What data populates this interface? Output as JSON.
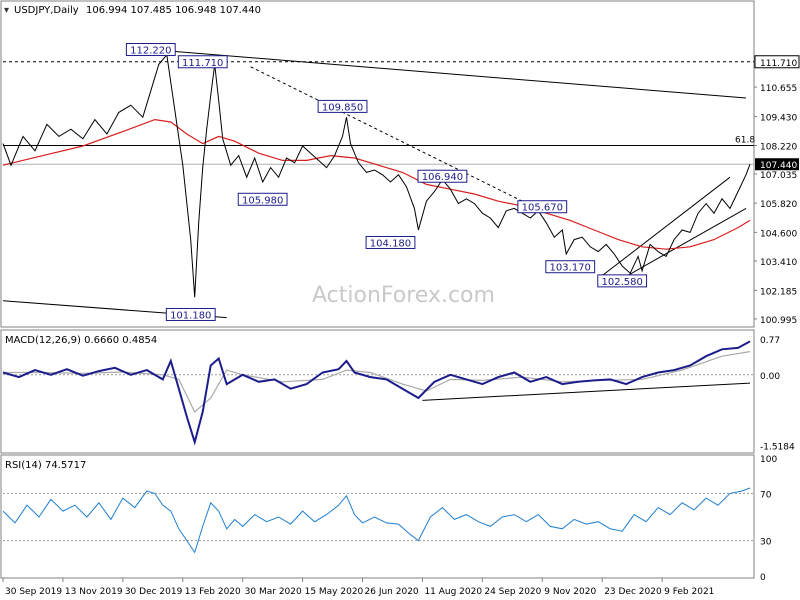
{
  "chart_data": {
    "type": "line",
    "instrument": {
      "symbol": "USDJPY,Daily",
      "ohlc": "106.994 107.485 106.948 107.440",
      "last_price": 107.44
    },
    "watermark": "ActionForex.com",
    "price_panel": {
      "ylim": [
        100.7,
        114.2
      ],
      "tick_labels": [
        "111.710",
        "110.655",
        "109.430",
        "108.220",
        "107.440",
        "107.035",
        "105.820",
        "104.600",
        "103.410",
        "102.185",
        "100.995"
      ],
      "h_levels": [
        {
          "value": 111.71,
          "label": "111.710",
          "style": "dashed"
        },
        {
          "value": 108.22,
          "label": "108.220",
          "style": "solid"
        },
        {
          "value": 107.44,
          "label": "107.440",
          "style": "solid-gray"
        }
      ],
      "fib_label": "61.8",
      "annotations": [
        {
          "text": "112.220",
          "i": 37,
          "y": 112.22
        },
        {
          "text": "111.710",
          "i": 50,
          "y": 111.71
        },
        {
          "text": "109.850",
          "i": 85,
          "y": 109.85
        },
        {
          "text": "105.980",
          "i": 65,
          "y": 105.98
        },
        {
          "text": "104.180",
          "i": 97,
          "y": 104.18
        },
        {
          "text": "106.940",
          "i": 110,
          "y": 106.94
        },
        {
          "text": "105.670",
          "i": 135,
          "y": 105.67
        },
        {
          "text": "103.170",
          "i": 142,
          "y": 103.17
        },
        {
          "text": "102.580",
          "i": 155,
          "y": 102.58
        },
        {
          "text": "101.180",
          "i": 47,
          "y": 101.18
        }
      ],
      "trendlines": [
        {
          "from": [
            37,
            112.22
          ],
          "to": [
            186,
            110.2
          ],
          "style": "solid"
        },
        {
          "from": [
            0,
            101.75
          ],
          "to": [
            56,
            101.05
          ],
          "style": "solid"
        },
        {
          "from": [
            62,
            111.5
          ],
          "to": [
            130,
            105.9
          ],
          "style": "dashed"
        },
        {
          "from": [
            150,
            102.8
          ],
          "to": [
            182,
            106.9
          ],
          "style": "solid"
        },
        {
          "from": [
            154,
            102.58
          ],
          "to": [
            186,
            105.6
          ],
          "style": "solid"
        }
      ],
      "close_points": [
        [
          0,
          108.3
        ],
        [
          2,
          107.4
        ],
        [
          5,
          108.6
        ],
        [
          8,
          108.0
        ],
        [
          11,
          109.1
        ],
        [
          14,
          108.6
        ],
        [
          17,
          108.9
        ],
        [
          20,
          108.5
        ],
        [
          23,
          109.3
        ],
        [
          26,
          108.7
        ],
        [
          29,
          109.6
        ],
        [
          32,
          109.9
        ],
        [
          35,
          109.4
        ],
        [
          37,
          110.5
        ],
        [
          39,
          111.6
        ],
        [
          41,
          112.0
        ],
        [
          43,
          109.7
        ],
        [
          45,
          107.4
        ],
        [
          47,
          104.3
        ],
        [
          48,
          101.9
        ],
        [
          49,
          105.0
        ],
        [
          50,
          107.3
        ],
        [
          51,
          108.9
        ],
        [
          52,
          110.3
        ],
        [
          53,
          111.6
        ],
        [
          54,
          110.1
        ],
        [
          55,
          108.5
        ],
        [
          57,
          107.4
        ],
        [
          59,
          107.8
        ],
        [
          61,
          106.9
        ],
        [
          63,
          107.7
        ],
        [
          65,
          106.7
        ],
        [
          67,
          107.3
        ],
        [
          69,
          106.9
        ],
        [
          71,
          107.7
        ],
        [
          73,
          107.5
        ],
        [
          75,
          108.2
        ],
        [
          77,
          107.9
        ],
        [
          79,
          107.6
        ],
        [
          81,
          107.3
        ],
        [
          83,
          107.8
        ],
        [
          85,
          108.6
        ],
        [
          86,
          109.4
        ],
        [
          87,
          108.3
        ],
        [
          89,
          107.5
        ],
        [
          91,
          107.1
        ],
        [
          93,
          107.2
        ],
        [
          95,
          107.0
        ],
        [
          97,
          106.7
        ],
        [
          99,
          107.0
        ],
        [
          101,
          106.5
        ],
        [
          103,
          105.6
        ],
        [
          104,
          104.7
        ],
        [
          106,
          105.9
        ],
        [
          108,
          106.3
        ],
        [
          110,
          106.8
        ],
        [
          112,
          106.4
        ],
        [
          114,
          105.8
        ],
        [
          116,
          106.0
        ],
        [
          118,
          105.8
        ],
        [
          120,
          105.4
        ],
        [
          122,
          105.2
        ],
        [
          124,
          104.8
        ],
        [
          126,
          105.5
        ],
        [
          128,
          105.6
        ],
        [
          130,
          105.4
        ],
        [
          132,
          105.2
        ],
        [
          134,
          105.5
        ],
        [
          136,
          105.0
        ],
        [
          138,
          104.4
        ],
        [
          140,
          104.7
        ],
        [
          141,
          103.7
        ],
        [
          143,
          104.3
        ],
        [
          145,
          104.4
        ],
        [
          147,
          104.0
        ],
        [
          149,
          103.8
        ],
        [
          151,
          104.1
        ],
        [
          153,
          103.7
        ],
        [
          155,
          103.2
        ],
        [
          157,
          102.9
        ],
        [
          159,
          103.6
        ],
        [
          160,
          103.0
        ],
        [
          162,
          104.1
        ],
        [
          164,
          103.8
        ],
        [
          166,
          103.6
        ],
        [
          168,
          104.3
        ],
        [
          170,
          104.7
        ],
        [
          172,
          104.6
        ],
        [
          174,
          105.4
        ],
        [
          176,
          105.8
        ],
        [
          178,
          105.4
        ],
        [
          180,
          106.0
        ],
        [
          182,
          105.6
        ],
        [
          184,
          106.3
        ],
        [
          186,
          107.0
        ],
        [
          187,
          107.44
        ]
      ],
      "ma_points": [
        [
          0,
          107.4
        ],
        [
          10,
          107.8
        ],
        [
          20,
          108.2
        ],
        [
          30,
          108.8
        ],
        [
          38,
          109.3
        ],
        [
          42,
          109.2
        ],
        [
          46,
          108.7
        ],
        [
          50,
          108.3
        ],
        [
          54,
          108.6
        ],
        [
          58,
          108.4
        ],
        [
          64,
          107.9
        ],
        [
          70,
          107.6
        ],
        [
          76,
          107.6
        ],
        [
          82,
          107.8
        ],
        [
          88,
          107.7
        ],
        [
          94,
          107.4
        ],
        [
          100,
          107.1
        ],
        [
          106,
          106.6
        ],
        [
          112,
          106.4
        ],
        [
          118,
          106.2
        ],
        [
          124,
          105.9
        ],
        [
          130,
          105.7
        ],
        [
          136,
          105.4
        ],
        [
          142,
          105.1
        ],
        [
          148,
          104.7
        ],
        [
          154,
          104.3
        ],
        [
          160,
          104.0
        ],
        [
          166,
          103.9
        ],
        [
          172,
          104.0
        ],
        [
          178,
          104.3
        ],
        [
          184,
          104.8
        ],
        [
          187,
          105.1
        ]
      ]
    },
    "macd_panel": {
      "title": "MACD(12,26,9) 0.6660 0.4854",
      "ylim": [
        -1.62,
        0.9
      ],
      "tick_labels": [
        "0.77",
        "0.00",
        "-1.5184"
      ],
      "macd_points": [
        [
          0,
          0.05
        ],
        [
          4,
          -0.05
        ],
        [
          8,
          0.1
        ],
        [
          12,
          0.0
        ],
        [
          16,
          0.12
        ],
        [
          20,
          -0.02
        ],
        [
          24,
          0.08
        ],
        [
          28,
          0.15
        ],
        [
          32,
          0.0
        ],
        [
          36,
          0.1
        ],
        [
          40,
          -0.1
        ],
        [
          42,
          0.3
        ],
        [
          44,
          -0.3
        ],
        [
          46,
          -0.9
        ],
        [
          48,
          -1.45
        ],
        [
          50,
          -0.8
        ],
        [
          52,
          0.2
        ],
        [
          54,
          0.35
        ],
        [
          56,
          -0.2
        ],
        [
          60,
          0.0
        ],
        [
          64,
          -0.15
        ],
        [
          68,
          -0.1
        ],
        [
          72,
          -0.3
        ],
        [
          76,
          -0.2
        ],
        [
          80,
          0.05
        ],
        [
          84,
          0.12
        ],
        [
          86,
          0.3
        ],
        [
          88,
          0.05
        ],
        [
          92,
          -0.05
        ],
        [
          96,
          -0.1
        ],
        [
          100,
          -0.3
        ],
        [
          104,
          -0.5
        ],
        [
          108,
          -0.15
        ],
        [
          112,
          0.0
        ],
        [
          116,
          -0.1
        ],
        [
          120,
          -0.2
        ],
        [
          124,
          -0.05
        ],
        [
          128,
          0.05
        ],
        [
          132,
          -0.15
        ],
        [
          136,
          -0.05
        ],
        [
          140,
          -0.2
        ],
        [
          144,
          -0.15
        ],
        [
          148,
          -0.12
        ],
        [
          152,
          -0.1
        ],
        [
          156,
          -0.2
        ],
        [
          160,
          -0.05
        ],
        [
          164,
          0.05
        ],
        [
          168,
          0.1
        ],
        [
          172,
          0.2
        ],
        [
          176,
          0.4
        ],
        [
          180,
          0.55
        ],
        [
          184,
          0.58
        ],
        [
          187,
          0.72
        ]
      ],
      "signal_points": [
        [
          0,
          0.05
        ],
        [
          10,
          0.05
        ],
        [
          20,
          0.03
        ],
        [
          30,
          0.06
        ],
        [
          40,
          0.0
        ],
        [
          44,
          -0.1
        ],
        [
          48,
          -0.8
        ],
        [
          52,
          -0.5
        ],
        [
          56,
          0.1
        ],
        [
          60,
          0.0
        ],
        [
          70,
          -0.15
        ],
        [
          80,
          -0.1
        ],
        [
          86,
          0.1
        ],
        [
          92,
          0.05
        ],
        [
          100,
          -0.2
        ],
        [
          106,
          -0.35
        ],
        [
          112,
          -0.1
        ],
        [
          120,
          -0.12
        ],
        [
          130,
          -0.05
        ],
        [
          140,
          -0.15
        ],
        [
          150,
          -0.12
        ],
        [
          160,
          -0.1
        ],
        [
          170,
          0.1
        ],
        [
          180,
          0.4
        ],
        [
          187,
          0.5
        ]
      ],
      "trendline": {
        "from": [
          105,
          -0.55
        ],
        "to": [
          187,
          -0.18
        ]
      }
    },
    "rsi_panel": {
      "title": "RSI(14) 74.5717",
      "ylim": [
        0,
        100
      ],
      "tick_labels": [
        "100",
        "70",
        "30",
        "0"
      ],
      "levels": [
        70,
        30
      ],
      "rsi_points": [
        [
          0,
          55
        ],
        [
          3,
          45
        ],
        [
          6,
          60
        ],
        [
          9,
          50
        ],
        [
          12,
          65
        ],
        [
          15,
          55
        ],
        [
          18,
          60
        ],
        [
          21,
          50
        ],
        [
          24,
          62
        ],
        [
          27,
          48
        ],
        [
          30,
          66
        ],
        [
          33,
          58
        ],
        [
          36,
          72
        ],
        [
          38,
          70
        ],
        [
          40,
          60
        ],
        [
          42,
          55
        ],
        [
          44,
          40
        ],
        [
          46,
          30
        ],
        [
          48,
          20
        ],
        [
          50,
          42
        ],
        [
          52,
          62
        ],
        [
          54,
          55
        ],
        [
          56,
          40
        ],
        [
          58,
          48
        ],
        [
          60,
          42
        ],
        [
          63,
          52
        ],
        [
          66,
          46
        ],
        [
          69,
          50
        ],
        [
          72,
          44
        ],
        [
          75,
          55
        ],
        [
          78,
          46
        ],
        [
          81,
          52
        ],
        [
          84,
          60
        ],
        [
          86,
          68
        ],
        [
          88,
          52
        ],
        [
          90,
          45
        ],
        [
          93,
          50
        ],
        [
          96,
          45
        ],
        [
          99,
          44
        ],
        [
          102,
          35
        ],
        [
          104,
          30
        ],
        [
          107,
          50
        ],
        [
          110,
          58
        ],
        [
          113,
          48
        ],
        [
          116,
          52
        ],
        [
          119,
          46
        ],
        [
          122,
          42
        ],
        [
          125,
          50
        ],
        [
          128,
          52
        ],
        [
          131,
          46
        ],
        [
          134,
          52
        ],
        [
          137,
          42
        ],
        [
          140,
          40
        ],
        [
          143,
          48
        ],
        [
          146,
          44
        ],
        [
          149,
          46
        ],
        [
          152,
          40
        ],
        [
          155,
          38
        ],
        [
          158,
          52
        ],
        [
          161,
          46
        ],
        [
          164,
          58
        ],
        [
          167,
          52
        ],
        [
          170,
          62
        ],
        [
          173,
          56
        ],
        [
          176,
          66
        ],
        [
          179,
          60
        ],
        [
          182,
          70
        ],
        [
          185,
          72
        ],
        [
          187,
          74.6
        ]
      ]
    },
    "x_axis": {
      "n_bars": 188,
      "tick_labels": [
        "30 Sep 2019",
        "13 Nov 2019",
        "30 Dec 2019",
        "13 Feb 2020",
        "30 Mar 2020",
        "15 May 2020",
        "26 Jun 2020",
        "11 Aug 2020",
        "24 Sep 2020",
        "9 Nov 2020",
        "23 Dec 2020",
        "9 Feb 2021"
      ],
      "tick_indices": [
        0,
        15,
        30,
        45,
        60,
        75,
        90,
        105,
        120,
        135,
        150,
        165
      ]
    },
    "colors": {
      "price_line": "#000000",
      "ma": "#d81e1e",
      "macd": "#1c1c8c",
      "signal": "#aaaaaa",
      "rsi": "#1f7fd0",
      "grid_dotted": "#9a9a9a",
      "annotation_text": "#1c1c8c",
      "watermark": "#c9c9c9"
    }
  }
}
